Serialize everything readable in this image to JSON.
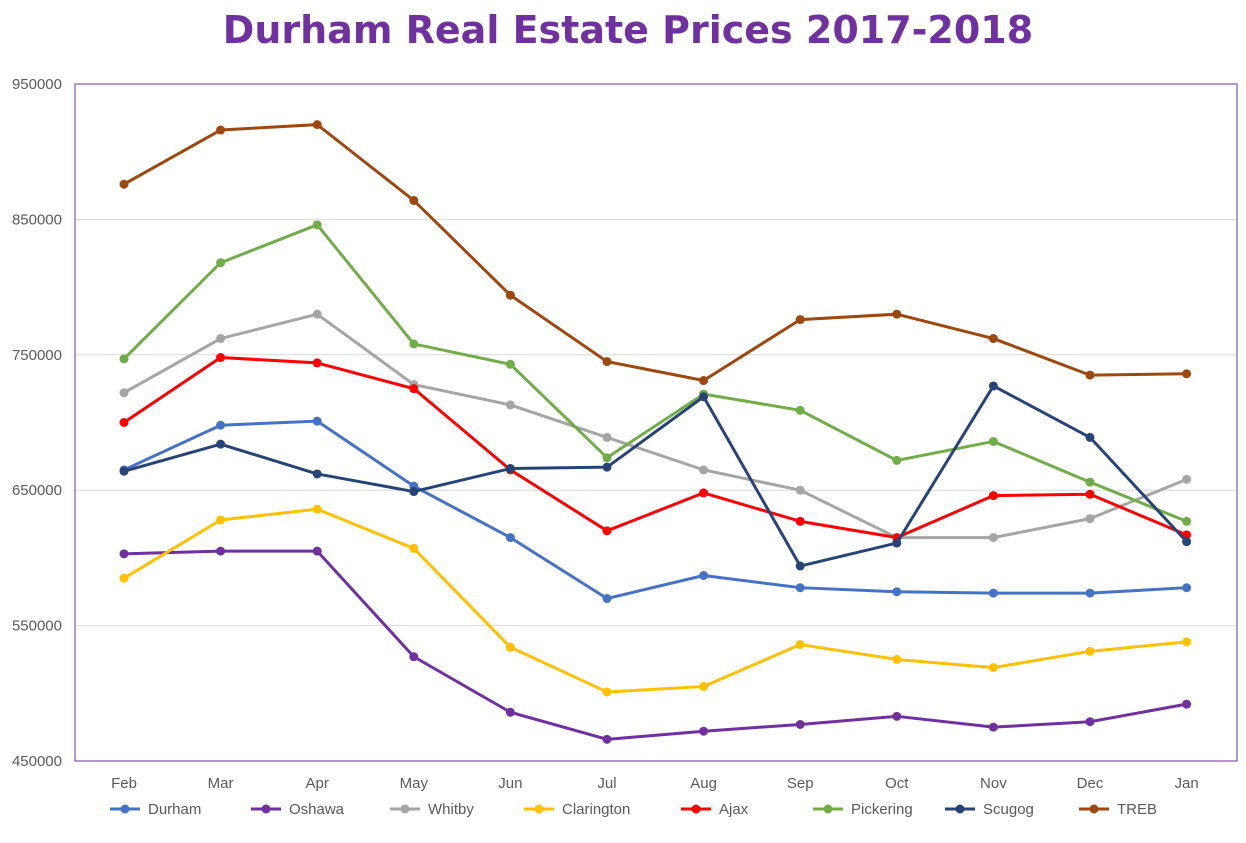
{
  "chart_data": {
    "type": "line",
    "title": "Durham Real Estate Prices 2017-2018",
    "xlabel": "",
    "ylabel": "",
    "categories": [
      "Feb",
      "Mar",
      "Apr",
      "May",
      "Jun",
      "Jul",
      "Aug",
      "Sep",
      "Oct",
      "Nov",
      "Dec",
      "Jan"
    ],
    "ylim": [
      450000,
      950000
    ],
    "yticks": [
      "950000",
      "850000",
      "750000",
      "650000",
      "550000",
      "450000"
    ],
    "grid": true,
    "legend_position": "bottom",
    "series": [
      {
        "name": "Durham",
        "color": "#4472c4",
        "values": [
          665000,
          698000,
          701000,
          653000,
          615000,
          570000,
          587000,
          578000,
          575000,
          574000,
          574000,
          578000
        ]
      },
      {
        "name": "Oshawa",
        "color": "#7030a0",
        "values": [
          603000,
          605000,
          605000,
          527000,
          486000,
          466000,
          472000,
          477000,
          483000,
          475000,
          479000,
          492000
        ]
      },
      {
        "name": "Whitby",
        "color": "#a5a5a5",
        "values": [
          722000,
          762000,
          780000,
          728000,
          713000,
          689000,
          665000,
          650000,
          615000,
          615000,
          629000,
          658000
        ]
      },
      {
        "name": "Clarington",
        "color": "#ffc000",
        "values": [
          585000,
          628000,
          636000,
          607000,
          534000,
          501000,
          505000,
          536000,
          525000,
          519000,
          531000,
          538000
        ]
      },
      {
        "name": "Ajax",
        "color": "#ff0000",
        "values": [
          700000,
          748000,
          744000,
          725000,
          665000,
          620000,
          648000,
          627000,
          615000,
          646000,
          647000,
          617000
        ]
      },
      {
        "name": "Pickering",
        "color": "#70ad47",
        "values": [
          747000,
          818000,
          846000,
          758000,
          743000,
          674000,
          721000,
          709000,
          672000,
          686000,
          656000,
          627000
        ]
      },
      {
        "name": "Scugog",
        "color": "#264478",
        "values": [
          664000,
          684000,
          662000,
          649000,
          666000,
          667000,
          719000,
          594000,
          611000,
          727000,
          689000,
          612000
        ]
      },
      {
        "name": "TREB",
        "color": "#9e480e",
        "values": [
          876000,
          916000,
          920000,
          864000,
          794000,
          745000,
          731000,
          776000,
          780000,
          762000,
          735000,
          736000
        ]
      }
    ]
  },
  "colors": {
    "title": "#7030a0",
    "plot_border": "#7030a0",
    "gridline": "#d9d9d9",
    "axis_text": "#595959"
  }
}
